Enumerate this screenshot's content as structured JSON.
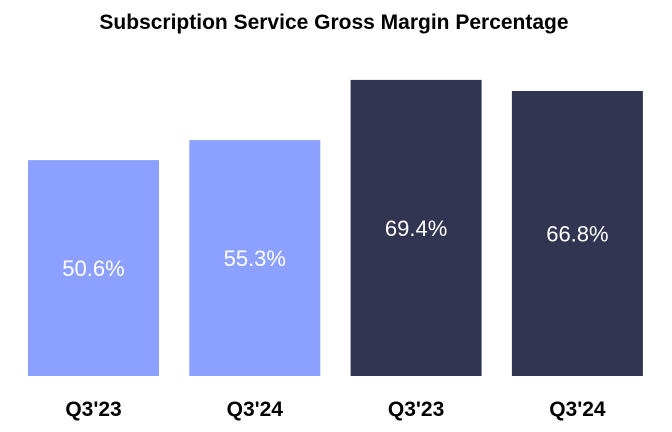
{
  "chart_data": {
    "type": "bar",
    "title": "Subscription Service Gross Margin Percentage",
    "xlabel": "",
    "ylabel": "",
    "categories": [
      "Q3'23",
      "Q3'24",
      "Q3'23",
      "Q3'24"
    ],
    "values": [
      50.6,
      55.3,
      69.4,
      66.8
    ],
    "value_labels": [
      "50.6%",
      "55.3%",
      "69.4%",
      "66.8%"
    ],
    "unit": "%",
    "ylim": [
      0,
      75
    ],
    "grid": false,
    "legend": "none",
    "bar_colors": [
      "#8ca0ff",
      "#8ca0ff",
      "#323552",
      "#323552"
    ]
  }
}
